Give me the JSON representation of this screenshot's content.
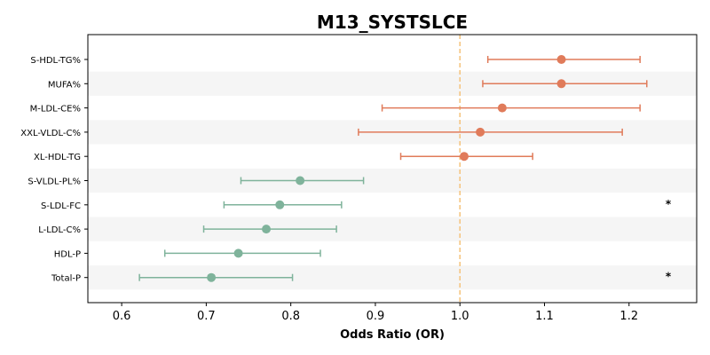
{
  "chart_data": {
    "type": "scatter",
    "subtype": "forest-plot",
    "title": "M13_SYSTSLCE",
    "xlabel": "Odds Ratio (OR)",
    "ylabel": "",
    "xlim": [
      0.56,
      1.28
    ],
    "xticks": [
      0.6,
      0.7,
      0.8,
      0.9,
      1.0,
      1.1,
      1.2
    ],
    "xtick_labels": [
      "0.6",
      "0.7",
      "0.8",
      "0.9",
      "1.0",
      "1.1",
      "1.2"
    ],
    "reference_line": 1.0,
    "reference_color": "#f5c27a",
    "colors": {
      "above": "#e07b5a",
      "below": "#7fb39b",
      "band": "#f5f5f5"
    },
    "rows": [
      {
        "label": "S-HDL-TG%",
        "or": 1.12,
        "low": 1.033,
        "high": 1.213,
        "sig": ""
      },
      {
        "label": "MUFA%",
        "or": 1.12,
        "low": 1.027,
        "high": 1.221,
        "sig": ""
      },
      {
        "label": "M-LDL-CE%",
        "or": 1.05,
        "low": 0.908,
        "high": 1.213,
        "sig": ""
      },
      {
        "label": "XXL-VLDL-C%",
        "or": 1.024,
        "low": 0.88,
        "high": 1.192,
        "sig": ""
      },
      {
        "label": "XL-HDL-TG",
        "or": 1.005,
        "low": 0.93,
        "high": 1.086,
        "sig": ""
      },
      {
        "label": "S-VLDL-PL%",
        "or": 0.811,
        "low": 0.741,
        "high": 0.886,
        "sig": ""
      },
      {
        "label": "S-LDL-FC",
        "or": 0.787,
        "low": 0.721,
        "high": 0.86,
        "sig": "*"
      },
      {
        "label": "L-LDL-C%",
        "or": 0.771,
        "low": 0.697,
        "high": 0.854,
        "sig": ""
      },
      {
        "label": "HDL-P",
        "or": 0.738,
        "low": 0.651,
        "high": 0.835,
        "sig": ""
      },
      {
        "label": "Total-P",
        "or": 0.706,
        "low": 0.621,
        "high": 0.802,
        "sig": "*"
      }
    ]
  }
}
